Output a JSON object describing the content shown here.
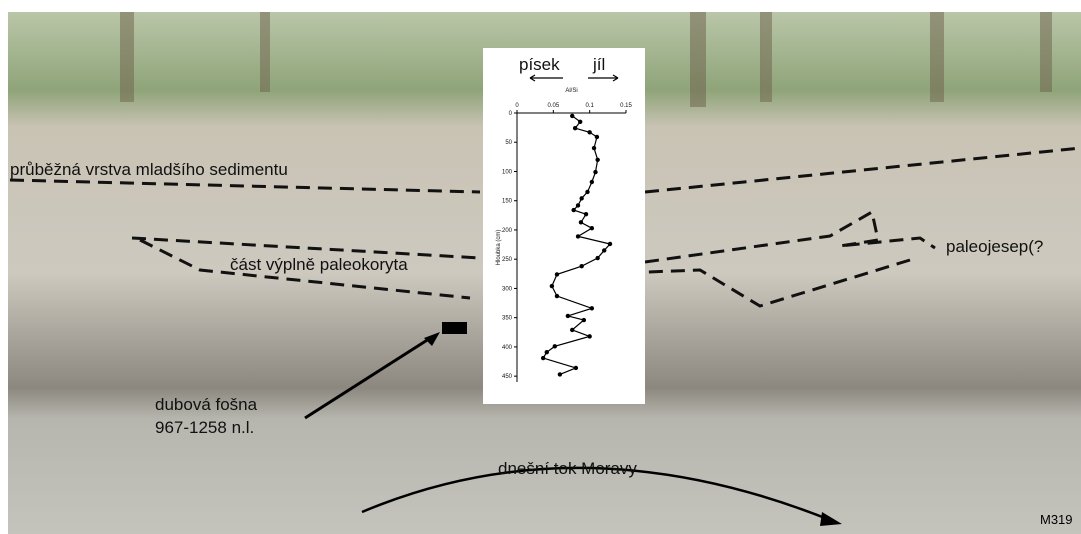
{
  "annotations": {
    "layer": "průběžná vrstva mladšího sedimentu",
    "fill": "část výplně paleokoryta",
    "oxbow": "paleojesep(?",
    "plank_name": "dubová fošna",
    "plank_date": "967-1258 n.l.",
    "river": "dnešní tok Moravy",
    "code": "M319",
    "sand": "písek",
    "clay": "jíl"
  },
  "chart_data": {
    "type": "profile",
    "x_label": "Al/Si",
    "y_label": "Hloubka (cm)",
    "color": "#000000",
    "xlim": [
      0,
      0.15
    ],
    "xticks": [
      0,
      0.05,
      0.1,
      0.15
    ],
    "ylim": [
      0,
      460
    ],
    "y_reversed": true,
    "yticks": [
      0,
      50,
      100,
      150,
      200,
      250,
      300,
      350,
      400,
      450
    ],
    "x": [
      0.076,
      0.087,
      0.08,
      0.1,
      0.11,
      0.106,
      0.111,
      0.108,
      0.103,
      0.097,
      0.089,
      0.084,
      0.078,
      0.095,
      0.088,
      0.103,
      0.084,
      0.128,
      0.12,
      0.111,
      0.089,
      0.055,
      0.048,
      0.055,
      0.103,
      0.07,
      0.092,
      0.076,
      0.1,
      0.052,
      0.041,
      0.036,
      0.081,
      0.059
    ],
    "y": [
      5,
      15,
      26,
      33,
      41,
      60,
      80,
      101,
      118,
      135,
      146,
      158,
      166,
      173,
      187,
      197,
      211,
      224,
      235,
      248,
      262,
      276,
      296,
      313,
      334,
      347,
      354,
      371,
      382,
      399,
      409,
      419,
      436,
      447
    ]
  }
}
